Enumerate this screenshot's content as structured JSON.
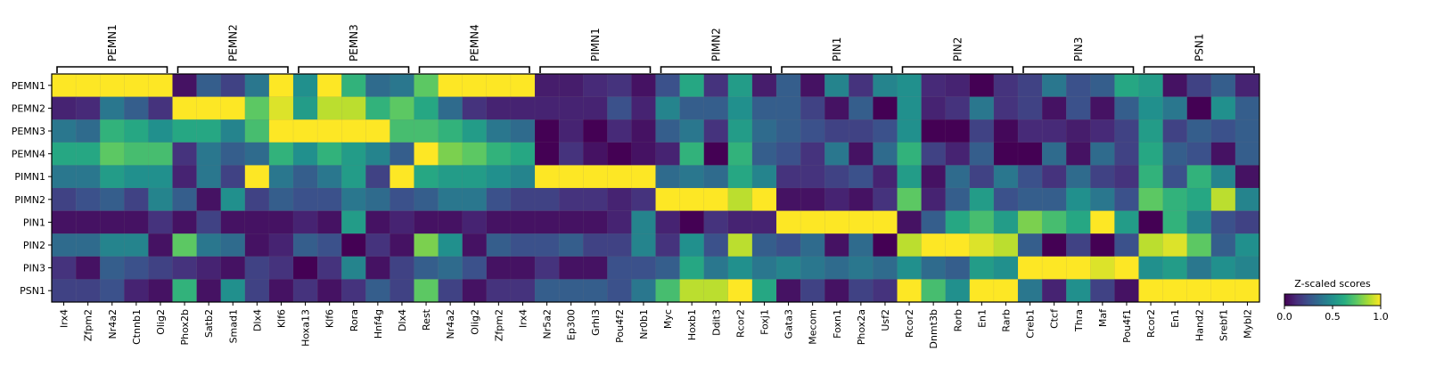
{
  "chart_data": {
    "type": "heatmap",
    "title": "",
    "rows": [
      "PEMN1",
      "PEMN2",
      "PEMN3",
      "PEMN4",
      "PIMN1",
      "PIMN2",
      "PIN1",
      "PIN2",
      "PIN3",
      "PSN1"
    ],
    "groups": [
      {
        "name": "PEMN1",
        "genes": [
          "Irx4",
          "Zfpm2",
          "Nr4a2",
          "Ctnnb1",
          "Olig2"
        ]
      },
      {
        "name": "PEMN2",
        "genes": [
          "Phox2b",
          "Satb2",
          "Smad1",
          "Dlx4",
          "Klf6"
        ]
      },
      {
        "name": "PEMN3",
        "genes": [
          "Hoxa13",
          "Klf6",
          "Rora",
          "Hnf4g",
          "Dlx4"
        ]
      },
      {
        "name": "PEMN4",
        "genes": [
          "Rest",
          "Nr4a2",
          "Olig2",
          "Zfpm2",
          "Irx4"
        ]
      },
      {
        "name": "PIMN1",
        "genes": [
          "Nr5a2",
          "Ep300",
          "Grhl3",
          "Pou4f2",
          "Nr0b1"
        ]
      },
      {
        "name": "PIMN2",
        "genes": [
          "Myc",
          "Hoxb1",
          "Ddit3",
          "Rcor2",
          "Foxj1"
        ]
      },
      {
        "name": "PIN1",
        "genes": [
          "Gata3",
          "Mecom",
          "Foxn1",
          "Phox2a",
          "Usf2"
        ]
      },
      {
        "name": "PIN2",
        "genes": [
          "Rcor2",
          "Dnmt3b",
          "Rorb",
          "En1",
          "Rarb"
        ]
      },
      {
        "name": "PIN3",
        "genes": [
          "Creb1",
          "Ctcf",
          "Thra",
          "Maf",
          "Pou4f1"
        ]
      },
      {
        "name": "PSN1",
        "genes": [
          "Rcor2",
          "En1",
          "Hand2",
          "Srebf1",
          "Mybl2"
        ]
      }
    ],
    "values": [
      [
        1.0,
        1.0,
        1.0,
        1.0,
        1.0,
        0.05,
        0.3,
        0.2,
        0.4,
        1.0,
        0.5,
        1.0,
        0.65,
        0.35,
        0.4,
        0.75,
        1.0,
        1.0,
        1.0,
        1.0,
        0.08,
        0.08,
        0.12,
        0.15,
        0.05,
        0.25,
        0.6,
        0.15,
        0.55,
        0.08,
        0.3,
        0.05,
        0.45,
        0.15,
        0.45,
        0.5,
        0.12,
        0.1,
        0.0,
        0.15,
        0.2,
        0.4,
        0.25,
        0.3,
        0.6,
        0.55,
        0.05,
        0.2,
        0.3,
        0.1
      ],
      [
        0.1,
        0.12,
        0.4,
        0.3,
        0.15,
        1.0,
        1.0,
        1.0,
        0.75,
        0.95,
        0.55,
        0.9,
        0.9,
        0.65,
        0.75,
        0.6,
        0.35,
        0.15,
        0.1,
        0.1,
        0.1,
        0.1,
        0.1,
        0.25,
        0.1,
        0.45,
        0.3,
        0.3,
        0.5,
        0.3,
        0.3,
        0.2,
        0.05,
        0.3,
        0.0,
        0.5,
        0.1,
        0.15,
        0.4,
        0.15,
        0.2,
        0.05,
        0.25,
        0.05,
        0.3,
        0.5,
        0.4,
        0.0,
        0.5,
        0.3
      ],
      [
        0.4,
        0.35,
        0.65,
        0.6,
        0.5,
        0.6,
        0.6,
        0.45,
        0.7,
        1.0,
        1.0,
        1.0,
        1.0,
        1.0,
        0.7,
        0.7,
        0.65,
        0.55,
        0.4,
        0.35,
        0.0,
        0.1,
        0.0,
        0.12,
        0.05,
        0.3,
        0.4,
        0.15,
        0.55,
        0.35,
        0.3,
        0.25,
        0.2,
        0.2,
        0.25,
        0.5,
        0.0,
        0.0,
        0.2,
        0.02,
        0.12,
        0.12,
        0.08,
        0.12,
        0.2,
        0.55,
        0.2,
        0.3,
        0.25,
        0.3
      ],
      [
        0.6,
        0.6,
        0.75,
        0.7,
        0.7,
        0.15,
        0.4,
        0.3,
        0.35,
        0.65,
        0.5,
        0.65,
        0.55,
        0.45,
        0.3,
        1.0,
        0.8,
        0.75,
        0.65,
        0.6,
        0.0,
        0.15,
        0.05,
        0.0,
        0.05,
        0.1,
        0.65,
        0.0,
        0.65,
        0.3,
        0.25,
        0.15,
        0.4,
        0.05,
        0.35,
        0.65,
        0.2,
        0.1,
        0.3,
        0.0,
        0.0,
        0.35,
        0.05,
        0.35,
        0.2,
        0.6,
        0.3,
        0.25,
        0.05,
        0.3
      ],
      [
        0.4,
        0.4,
        0.55,
        0.5,
        0.5,
        0.1,
        0.4,
        0.2,
        1.0,
        0.4,
        0.3,
        0.4,
        0.55,
        0.2,
        1.0,
        0.6,
        0.55,
        0.55,
        0.5,
        0.45,
        1.0,
        1.0,
        1.0,
        1.0,
        1.0,
        0.35,
        0.4,
        0.35,
        0.6,
        0.45,
        0.15,
        0.15,
        0.2,
        0.25,
        0.1,
        0.55,
        0.05,
        0.35,
        0.2,
        0.4,
        0.25,
        0.15,
        0.35,
        0.2,
        0.15,
        0.65,
        0.25,
        0.65,
        0.45,
        0.05
      ],
      [
        0.2,
        0.25,
        0.3,
        0.2,
        0.45,
        0.3,
        0.05,
        0.5,
        0.2,
        0.3,
        0.25,
        0.25,
        0.4,
        0.35,
        0.25,
        0.3,
        0.4,
        0.4,
        0.25,
        0.2,
        0.2,
        0.15,
        0.15,
        0.1,
        0.15,
        1.0,
        1.0,
        1.0,
        0.9,
        1.0,
        0.05,
        0.05,
        0.1,
        0.05,
        0.15,
        0.75,
        0.1,
        0.3,
        0.55,
        0.25,
        0.3,
        0.3,
        0.5,
        0.4,
        0.25,
        0.75,
        0.65,
        0.6,
        0.9,
        0.45
      ],
      [
        0.05,
        0.05,
        0.05,
        0.05,
        0.15,
        0.05,
        0.2,
        0.05,
        0.05,
        0.05,
        0.1,
        0.05,
        0.55,
        0.05,
        0.1,
        0.05,
        0.05,
        0.1,
        0.05,
        0.05,
        0.05,
        0.05,
        0.05,
        0.1,
        0.45,
        0.1,
        0.0,
        0.15,
        0.1,
        0.1,
        1.0,
        1.0,
        1.0,
        1.0,
        1.0,
        0.05,
        0.3,
        0.6,
        0.7,
        0.55,
        0.8,
        0.7,
        0.6,
        1.0,
        0.55,
        0.0,
        0.65,
        0.45,
        0.25,
        0.2
      ],
      [
        0.35,
        0.35,
        0.45,
        0.45,
        0.05,
        0.75,
        0.4,
        0.35,
        0.05,
        0.1,
        0.3,
        0.25,
        0.0,
        0.15,
        0.05,
        0.8,
        0.5,
        0.05,
        0.3,
        0.25,
        0.25,
        0.3,
        0.2,
        0.2,
        0.45,
        0.15,
        0.5,
        0.25,
        0.9,
        0.3,
        0.25,
        0.35,
        0.05,
        0.35,
        0.0,
        0.9,
        1.0,
        1.0,
        0.95,
        0.9,
        0.3,
        0.0,
        0.2,
        0.0,
        0.25,
        0.9,
        0.95,
        0.75,
        0.3,
        0.5
      ],
      [
        0.15,
        0.05,
        0.3,
        0.25,
        0.2,
        0.15,
        0.1,
        0.05,
        0.2,
        0.15,
        0.0,
        0.15,
        0.45,
        0.05,
        0.2,
        0.3,
        0.35,
        0.25,
        0.05,
        0.05,
        0.15,
        0.05,
        0.05,
        0.25,
        0.25,
        0.3,
        0.6,
        0.4,
        0.5,
        0.4,
        0.45,
        0.4,
        0.35,
        0.4,
        0.35,
        0.5,
        0.35,
        0.3,
        0.55,
        0.5,
        1.0,
        1.0,
        1.0,
        0.95,
        1.0,
        0.5,
        0.55,
        0.4,
        0.5,
        0.45
      ],
      [
        0.2,
        0.2,
        0.25,
        0.1,
        0.05,
        0.65,
        0.05,
        0.5,
        0.2,
        0.05,
        0.15,
        0.05,
        0.15,
        0.3,
        0.2,
        0.75,
        0.2,
        0.05,
        0.15,
        0.15,
        0.3,
        0.3,
        0.3,
        0.25,
        0.4,
        0.7,
        0.9,
        0.9,
        1.0,
        0.6,
        0.05,
        0.2,
        0.05,
        0.2,
        0.15,
        1.0,
        0.7,
        0.5,
        1.0,
        1.0,
        0.4,
        0.1,
        0.5,
        0.2,
        0.05,
        1.0,
        1.0,
        1.0,
        1.0,
        1.0
      ]
    ],
    "colorbar": {
      "label": "Z-scaled scores",
      "ticks": [
        "0.0",
        "0.5",
        "1.0"
      ],
      "range": [
        0,
        1
      ]
    },
    "colormap": "viridis",
    "grid": false
  }
}
